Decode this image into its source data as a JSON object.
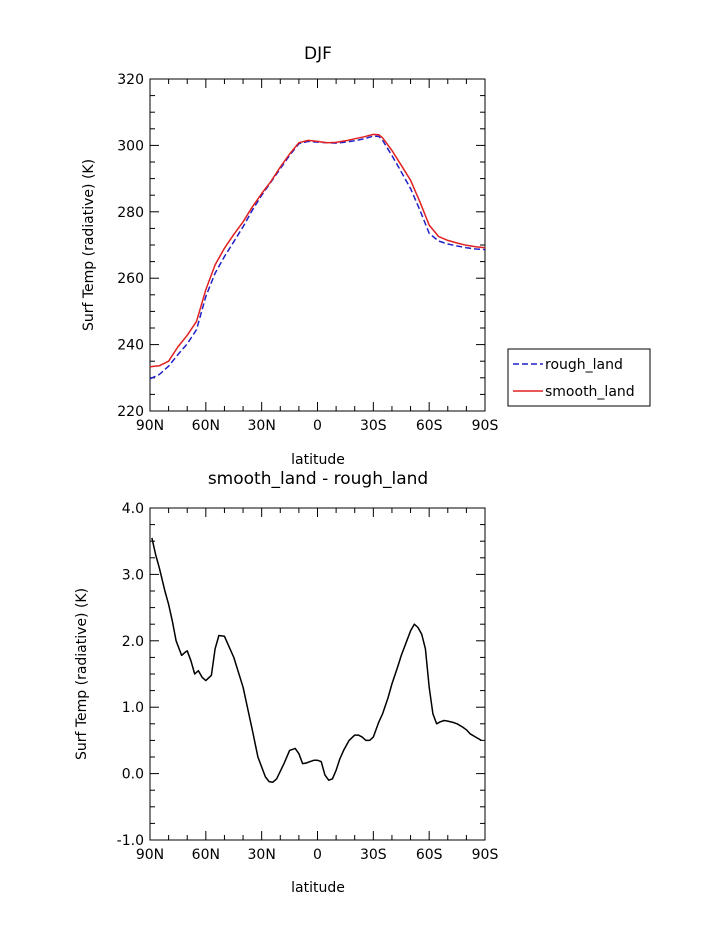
{
  "chart_data": [
    {
      "type": "line",
      "title": "DJF",
      "xlabel": "latitude",
      "ylabel": "Surf Temp (radiative) (K)",
      "xlim": [
        90,
        -90
      ],
      "ylim": [
        220,
        320
      ],
      "x_ticks": [
        {
          "value": 90,
          "label": "90N"
        },
        {
          "value": 60,
          "label": "60N"
        },
        {
          "value": 30,
          "label": "30N"
        },
        {
          "value": 0,
          "label": "0"
        },
        {
          "value": -30,
          "label": "30S"
        },
        {
          "value": -60,
          "label": "60S"
        },
        {
          "value": -90,
          "label": "90S"
        }
      ],
      "y_ticks": [
        {
          "value": 220,
          "label": "220"
        },
        {
          "value": 240,
          "label": "240"
        },
        {
          "value": 260,
          "label": "260"
        },
        {
          "value": 280,
          "label": "280"
        },
        {
          "value": 300,
          "label": "300"
        },
        {
          "value": 320,
          "label": "320"
        }
      ],
      "legend": "right",
      "series": [
        {
          "name": "rough_land",
          "color": "#2020c8",
          "dash": "dashed",
          "x": [
            90,
            85,
            80,
            75,
            70,
            65,
            60,
            55,
            50,
            45,
            40,
            35,
            30,
            25,
            20,
            15,
            10,
            5,
            0,
            -5,
            -10,
            -15,
            -20,
            -25,
            -30,
            -33,
            -35,
            -40,
            -45,
            -50,
            -55,
            -60,
            -65,
            -70,
            -75,
            -80,
            -85,
            -90
          ],
          "y": [
            229.7,
            231.0,
            233.5,
            237.0,
            240.2,
            244.5,
            254.5,
            261.5,
            266.5,
            271.0,
            275.5,
            280.5,
            285.0,
            289.0,
            293.0,
            297.0,
            300.5,
            301.2,
            301.0,
            300.8,
            300.7,
            301.0,
            301.4,
            302.0,
            302.8,
            302.7,
            301.5,
            297.0,
            292.0,
            287.0,
            280.5,
            273.5,
            271.2,
            270.3,
            269.7,
            269.2,
            268.8,
            268.6
          ]
        },
        {
          "name": "smooth_land",
          "color": "#e02020",
          "dash": "solid",
          "x": [
            90,
            85,
            80,
            75,
            70,
            65,
            60,
            55,
            50,
            45,
            40,
            35,
            30,
            25,
            20,
            15,
            10,
            5,
            0,
            -5,
            -10,
            -15,
            -20,
            -25,
            -30,
            -33,
            -35,
            -40,
            -45,
            -50,
            -55,
            -60,
            -65,
            -70,
            -75,
            -80,
            -85,
            -90
          ],
          "y": [
            233.3,
            233.6,
            235.0,
            239.3,
            242.8,
            247.0,
            256.5,
            264.0,
            269.0,
            273.2,
            277.0,
            281.5,
            285.5,
            289.2,
            293.5,
            297.4,
            300.8,
            301.5,
            301.2,
            300.8,
            300.9,
            301.4,
            302.0,
            302.6,
            303.3,
            303.2,
            302.3,
            298.5,
            294.0,
            289.5,
            283.0,
            276.0,
            272.6,
            271.4,
            270.6,
            269.9,
            269.5,
            269.2
          ]
        }
      ]
    },
    {
      "type": "line",
      "title": "smooth_land - rough_land",
      "xlabel": "latitude",
      "ylabel": "Surf Temp (radiative) (K)",
      "xlim": [
        90,
        -90
      ],
      "ylim": [
        -1.0,
        4.0
      ],
      "x_ticks": [
        {
          "value": 90,
          "label": "90N"
        },
        {
          "value": 60,
          "label": "60N"
        },
        {
          "value": 30,
          "label": "30N"
        },
        {
          "value": 0,
          "label": "0"
        },
        {
          "value": -30,
          "label": "30S"
        },
        {
          "value": -60,
          "label": "60S"
        },
        {
          "value": -90,
          "label": "90S"
        }
      ],
      "y_ticks": [
        {
          "value": -1.0,
          "label": "-1.0"
        },
        {
          "value": 0.0,
          "label": "0.0"
        },
        {
          "value": 1.0,
          "label": "1.0"
        },
        {
          "value": 2.0,
          "label": "2.0"
        },
        {
          "value": 3.0,
          "label": "3.0"
        },
        {
          "value": 4.0,
          "label": "4.0"
        }
      ],
      "series": [
        {
          "color": "#000000",
          "dash": "solid",
          "x": [
            89,
            87,
            85,
            82,
            80,
            78,
            76,
            73,
            71,
            70,
            68,
            66,
            64,
            62,
            60,
            57,
            55,
            53,
            50,
            45,
            40,
            35,
            32,
            28,
            26,
            24,
            22,
            18,
            15,
            12,
            10,
            8,
            6,
            4,
            2,
            0,
            -2,
            -4,
            -6,
            -8,
            -10,
            -12,
            -14,
            -17,
            -20,
            -22,
            -24,
            -26,
            -28,
            -30,
            -33,
            -35,
            -38,
            -40,
            -43,
            -45,
            -48,
            -50,
            -52,
            -54,
            -56,
            -58,
            -60,
            -62,
            -64,
            -66,
            -68,
            -70,
            -73,
            -75,
            -78,
            -80,
            -82,
            -85,
            -88
          ],
          "y": [
            3.55,
            3.3,
            3.1,
            2.75,
            2.55,
            2.3,
            2.0,
            1.78,
            1.83,
            1.85,
            1.7,
            1.5,
            1.55,
            1.45,
            1.4,
            1.48,
            1.88,
            2.08,
            2.07,
            1.75,
            1.3,
            0.65,
            0.25,
            -0.05,
            -0.12,
            -0.13,
            -0.08,
            0.15,
            0.35,
            0.38,
            0.3,
            0.15,
            0.16,
            0.18,
            0.2,
            0.2,
            0.18,
            -0.02,
            -0.1,
            -0.08,
            0.05,
            0.22,
            0.35,
            0.5,
            0.58,
            0.58,
            0.55,
            0.5,
            0.5,
            0.55,
            0.78,
            0.9,
            1.15,
            1.35,
            1.6,
            1.78,
            2.0,
            2.15,
            2.25,
            2.2,
            2.1,
            1.88,
            1.3,
            0.9,
            0.75,
            0.78,
            0.8,
            0.79,
            0.77,
            0.75,
            0.7,
            0.66,
            0.6,
            0.55,
            0.5
          ]
        }
      ]
    }
  ]
}
